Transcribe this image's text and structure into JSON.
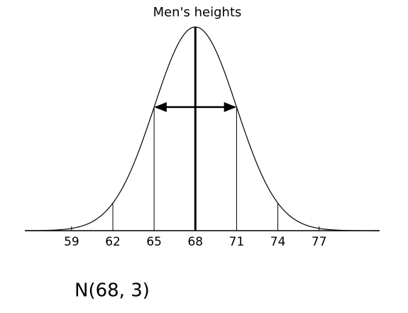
{
  "chart_data": {
    "type": "normal",
    "title": "Men's heights",
    "mean": 68,
    "sd": 3,
    "xlim": [
      55.6,
      81.4
    ],
    "xticks": [
      59,
      62,
      65,
      68,
      71,
      74,
      77
    ],
    "annotation": "N(68, 3)"
  }
}
